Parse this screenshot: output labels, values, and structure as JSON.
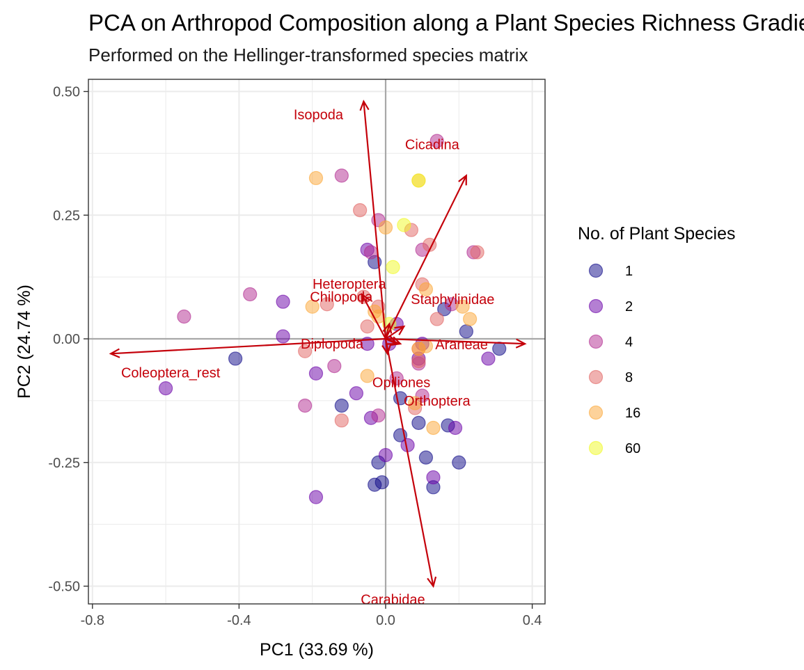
{
  "chart_data": {
    "type": "scatter",
    "title": "PCA on Arthropod Composition along a Plant Species Richness Gradient",
    "subtitle": "Performed on the Hellinger-transformed species matrix",
    "xlabel": "PC1 (33.69 %)",
    "ylabel": "PC2 (24.74 %)",
    "xlim": [
      -0.82,
      0.42
    ],
    "ylim": [
      -0.535,
      0.525
    ],
    "xticks": [
      -0.8,
      -0.4,
      0.0,
      0.4
    ],
    "xtick_labels": [
      "-0.8",
      "-0.4",
      "0.0",
      "0.4"
    ],
    "yticks": [
      -0.5,
      -0.25,
      0.0,
      0.25,
      0.5
    ],
    "ytick_labels": [
      "-0.50",
      "-0.25",
      "0.00",
      "0.25",
      "0.50"
    ],
    "grid": true,
    "legend": {
      "title": "No. of Plant Species",
      "position": "right",
      "entries": [
        {
          "label": "1",
          "color": "#0d0887"
        },
        {
          "label": "2",
          "color": "#6a00a8"
        },
        {
          "label": "4",
          "color": "#b12a90"
        },
        {
          "label": "8",
          "color": "#e16462"
        },
        {
          "label": "16",
          "color": "#fca636"
        },
        {
          "label": "60",
          "color": "#f0f921"
        }
      ]
    },
    "series": [
      {
        "name": "1",
        "color": "#0d0887",
        "points": [
          [
            -0.41,
            -0.04
          ],
          [
            -0.03,
            0.155
          ],
          [
            -0.12,
            -0.135
          ],
          [
            0.04,
            -0.12
          ],
          [
            0.09,
            -0.17
          ],
          [
            0.17,
            -0.175
          ],
          [
            0.2,
            -0.25
          ],
          [
            0.11,
            -0.24
          ],
          [
            0.04,
            -0.195
          ],
          [
            -0.02,
            -0.25
          ],
          [
            -0.03,
            -0.295
          ],
          [
            -0.01,
            -0.29
          ],
          [
            0.13,
            -0.3
          ],
          [
            0.16,
            0.06
          ],
          [
            0.22,
            0.015
          ],
          [
            0.31,
            -0.02
          ]
        ]
      },
      {
        "name": "2",
        "color": "#6a00a8",
        "points": [
          [
            -0.6,
            -0.1
          ],
          [
            -0.28,
            0.075
          ],
          [
            -0.28,
            0.005
          ],
          [
            -0.19,
            -0.07
          ],
          [
            -0.08,
            -0.11
          ],
          [
            -0.05,
            0.18
          ],
          [
            -0.05,
            -0.01
          ],
          [
            0.01,
            -0.01
          ],
          [
            -0.04,
            -0.16
          ],
          [
            0.0,
            -0.235
          ],
          [
            0.06,
            -0.215
          ],
          [
            0.13,
            -0.28
          ],
          [
            -0.19,
            -0.32
          ],
          [
            0.19,
            -0.18
          ],
          [
            0.28,
            -0.04
          ],
          [
            0.1,
            -0.01
          ],
          [
            0.09,
            -0.04
          ],
          [
            0.03,
            0.03
          ]
        ]
      },
      {
        "name": "4",
        "color": "#b12a90",
        "points": [
          [
            0.14,
            0.4
          ],
          [
            -0.12,
            0.33
          ],
          [
            -0.37,
            0.09
          ],
          [
            -0.55,
            0.045
          ],
          [
            -0.02,
            0.24
          ],
          [
            0.1,
            0.18
          ],
          [
            0.24,
            0.175
          ],
          [
            0.18,
            0.07
          ],
          [
            -0.04,
            0.175
          ],
          [
            -0.22,
            -0.135
          ],
          [
            -0.14,
            -0.055
          ],
          [
            -0.02,
            -0.155
          ],
          [
            0.03,
            -0.08
          ],
          [
            0.1,
            -0.115
          ],
          [
            0.09,
            -0.05
          ]
        ]
      },
      {
        "name": "8",
        "color": "#e16462",
        "points": [
          [
            -0.07,
            0.26
          ],
          [
            -0.16,
            0.07
          ],
          [
            -0.06,
            0.085
          ],
          [
            -0.02,
            0.065
          ],
          [
            0.07,
            0.22
          ],
          [
            0.12,
            0.19
          ],
          [
            0.1,
            0.11
          ],
          [
            0.25,
            0.175
          ],
          [
            0.14,
            0.04
          ],
          [
            -0.22,
            -0.025
          ],
          [
            -0.12,
            -0.165
          ],
          [
            0.08,
            -0.14
          ],
          [
            0.09,
            -0.02
          ],
          [
            0.09,
            -0.045
          ],
          [
            -0.05,
            0.025
          ]
        ]
      },
      {
        "name": "16",
        "color": "#fca636",
        "points": [
          [
            -0.19,
            0.325
          ],
          [
            0.0,
            0.225
          ],
          [
            0.09,
            0.32
          ],
          [
            -0.2,
            0.065
          ],
          [
            0.11,
            0.1
          ],
          [
            0.21,
            0.065
          ],
          [
            0.23,
            0.04
          ],
          [
            -0.05,
            -0.075
          ],
          [
            0.08,
            -0.13
          ],
          [
            0.13,
            -0.18
          ],
          [
            0.11,
            -0.015
          ],
          [
            0.09,
            -0.02
          ],
          [
            -0.03,
            0.055
          ],
          [
            -0.02,
            0.045
          ]
        ]
      },
      {
        "name": "60",
        "color": "#f0f921",
        "points": [
          [
            0.09,
            0.32
          ],
          [
            0.05,
            0.23
          ],
          [
            0.02,
            0.145
          ],
          [
            0.01,
            0.03
          ]
        ]
      }
    ],
    "loadings": [
      {
        "name": "Isopoda",
        "x": -0.06,
        "y": 0.48
      },
      {
        "name": "Cicadina",
        "x": 0.22,
        "y": 0.33
      },
      {
        "name": "Heteroptera",
        "x": -0.065,
        "y": 0.09
      },
      {
        "name": "Staphylinidae",
        "x": 0.05,
        "y": 0.025
      },
      {
        "name": "Chilopoda",
        "x": 0.01,
        "y": 0.03
      },
      {
        "name": "Araneae",
        "x": 0.38,
        "y": -0.01
      },
      {
        "name": "Diplopoda",
        "x": 0.04,
        "y": -0.01
      },
      {
        "name": "Coleoptera_rest",
        "x": -0.75,
        "y": -0.03
      },
      {
        "name": "Opiliones",
        "x": 0.005,
        "y": -0.03
      },
      {
        "name": "Orthoptera",
        "x": 0.03,
        "y": -0.01
      },
      {
        "name": "Carabidae",
        "x": 0.13,
        "y": -0.5
      }
    ]
  }
}
